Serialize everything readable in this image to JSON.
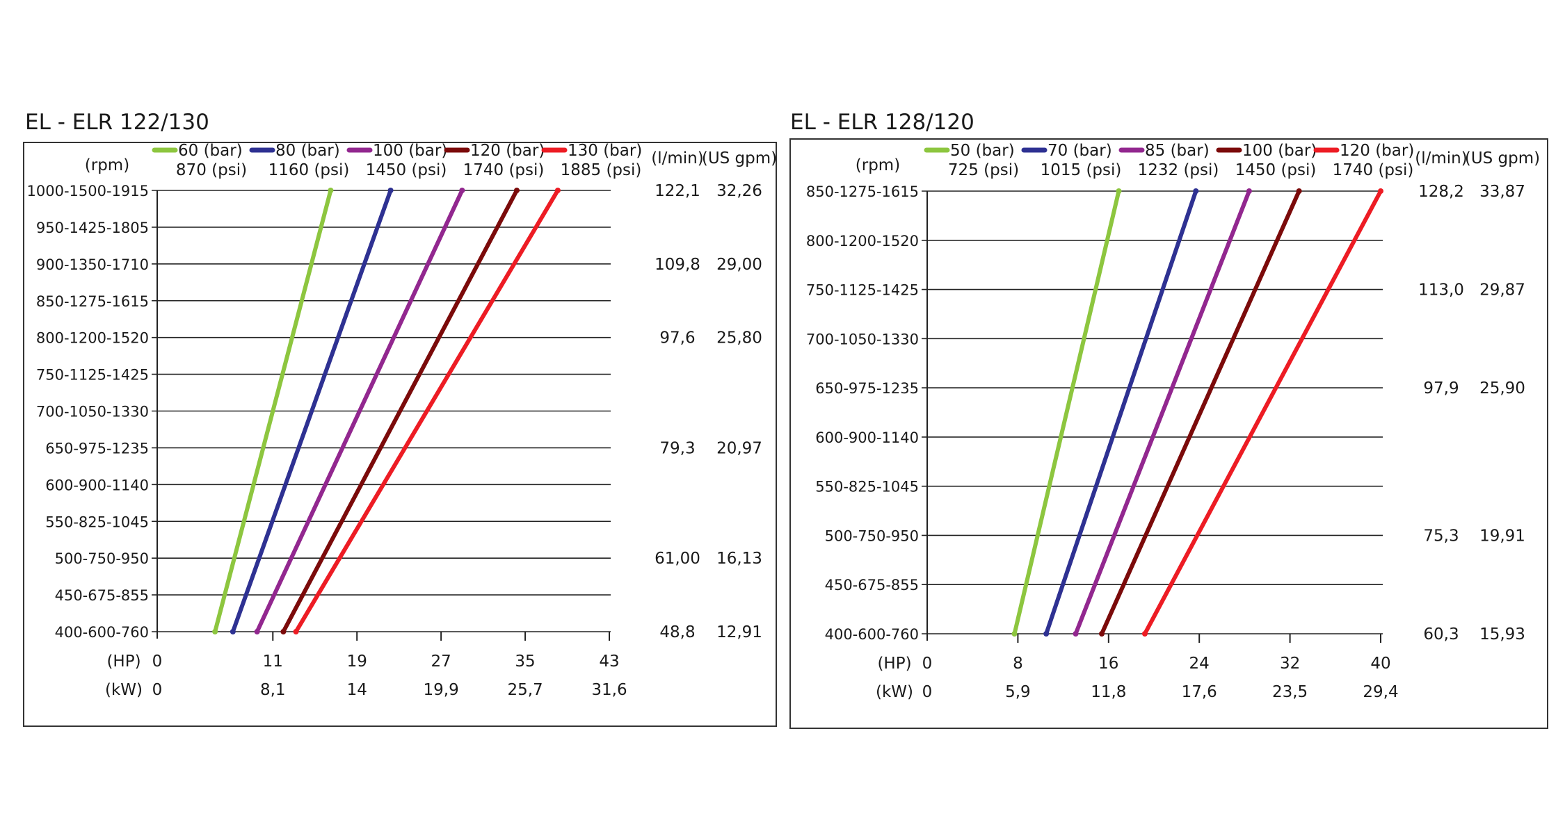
{
  "chart_data": [
    {
      "type": "line",
      "title": "EL - ELR 122/130",
      "y_unit_label": "(rpm)",
      "flow_unit_labels": [
        "(l/min)",
        "(US gpm)"
      ],
      "x_unit_labels": [
        "(HP)",
        "(kW)"
      ],
      "y_categories": [
        "400-600-760",
        "450-675-855",
        "500-750-950",
        "550-825-1045",
        "600-900-1140",
        "650-975-1235",
        "700-1050-1330",
        "750-1125-1425",
        "800-1200-1520",
        "850-1275-1615",
        "900-1350-1710",
        "950-1425-1805",
        "1000-1500-1915"
      ],
      "x_ticks_hp": [
        "0",
        "11",
        "19",
        "27",
        "35",
        "43"
      ],
      "x_ticks_kw": [
        "0",
        "8,1",
        "14",
        "19,9",
        "25,7",
        "31,6"
      ],
      "xlim": [
        0,
        43
      ],
      "flow_values": [
        {
          "row": 12,
          "lmin": "122,1",
          "gpm": "32,26"
        },
        {
          "row": 10,
          "lmin": "109,8",
          "gpm": "29,00"
        },
        {
          "row": 8,
          "lmin": "97,6",
          "gpm": "25,80"
        },
        {
          "row": 5,
          "lmin": "79,3",
          "gpm": "20,97"
        },
        {
          "row": 2,
          "lmin": "61,00",
          "gpm": "16,13"
        },
        {
          "row": 0,
          "lmin": "48,8",
          "gpm": "12,91"
        }
      ],
      "series": [
        {
          "bar": "60 (bar)",
          "psi": "870 (psi)",
          "color": "#8dc63f",
          "hp_range": [
            5.5,
            16.5
          ]
        },
        {
          "bar": "80 (bar)",
          "psi": "1160 (psi)",
          "color": "#2e3192",
          "hp_range": [
            7.2,
            22.2
          ]
        },
        {
          "bar": "100 (bar)",
          "psi": "1450 (psi)",
          "color": "#92278f",
          "hp_range": [
            9.5,
            29.0
          ]
        },
        {
          "bar": "120 (bar)",
          "psi": "1740 (psi)",
          "color": "#7b0a0a",
          "hp_range": [
            12.0,
            34.2
          ]
        },
        {
          "bar": "130 (bar)",
          "psi": "1885 (psi)",
          "color": "#ed1c24",
          "hp_range": [
            13.2,
            38.1
          ]
        }
      ]
    },
    {
      "type": "line",
      "title": "EL - ELR 128/120",
      "y_unit_label": "(rpm)",
      "flow_unit_labels": [
        "(l/min)",
        "(US gpm)"
      ],
      "x_unit_labels": [
        "(HP)",
        "(kW)"
      ],
      "y_categories": [
        "400-600-760",
        "450-675-855",
        "500-750-950",
        "550-825-1045",
        "600-900-1140",
        "650-975-1235",
        "700-1050-1330",
        "750-1125-1425",
        "800-1200-1520",
        "850-1275-1615"
      ],
      "x_ticks_hp": [
        "0",
        "8",
        "16",
        "24",
        "32",
        "40"
      ],
      "x_ticks_kw": [
        "0",
        "5,9",
        "11,8",
        "17,6",
        "23,5",
        "29,4"
      ],
      "xlim": [
        0,
        40
      ],
      "flow_values": [
        {
          "row": 9,
          "lmin": "128,2",
          "gpm": "33,87"
        },
        {
          "row": 7,
          "lmin": "113,0",
          "gpm": "29,87"
        },
        {
          "row": 5,
          "lmin": "97,9",
          "gpm": "25,90"
        },
        {
          "row": 2,
          "lmin": "75,3",
          "gpm": "19,91"
        },
        {
          "row": 0,
          "lmin": "60,3",
          "gpm": "15,93"
        }
      ],
      "series": [
        {
          "bar": "50 (bar)",
          "psi": "725 (psi)",
          "color": "#8dc63f",
          "hp_range": [
            7.7,
            16.9
          ]
        },
        {
          "bar": "70 (bar)",
          "psi": "1015 (psi)",
          "color": "#2e3192",
          "hp_range": [
            10.5,
            23.7
          ]
        },
        {
          "bar": "85 (bar)",
          "psi": "1232 (psi)",
          "color": "#92278f",
          "hp_range": [
            13.1,
            28.4
          ]
        },
        {
          "bar": "100 (bar)",
          "psi": "1450 (psi)",
          "color": "#7b0a0a",
          "hp_range": [
            15.4,
            32.8
          ]
        },
        {
          "bar": "120 (bar)",
          "psi": "1740 (psi)",
          "color": "#ed1c24",
          "hp_range": [
            19.2,
            40.0
          ]
        }
      ]
    }
  ]
}
